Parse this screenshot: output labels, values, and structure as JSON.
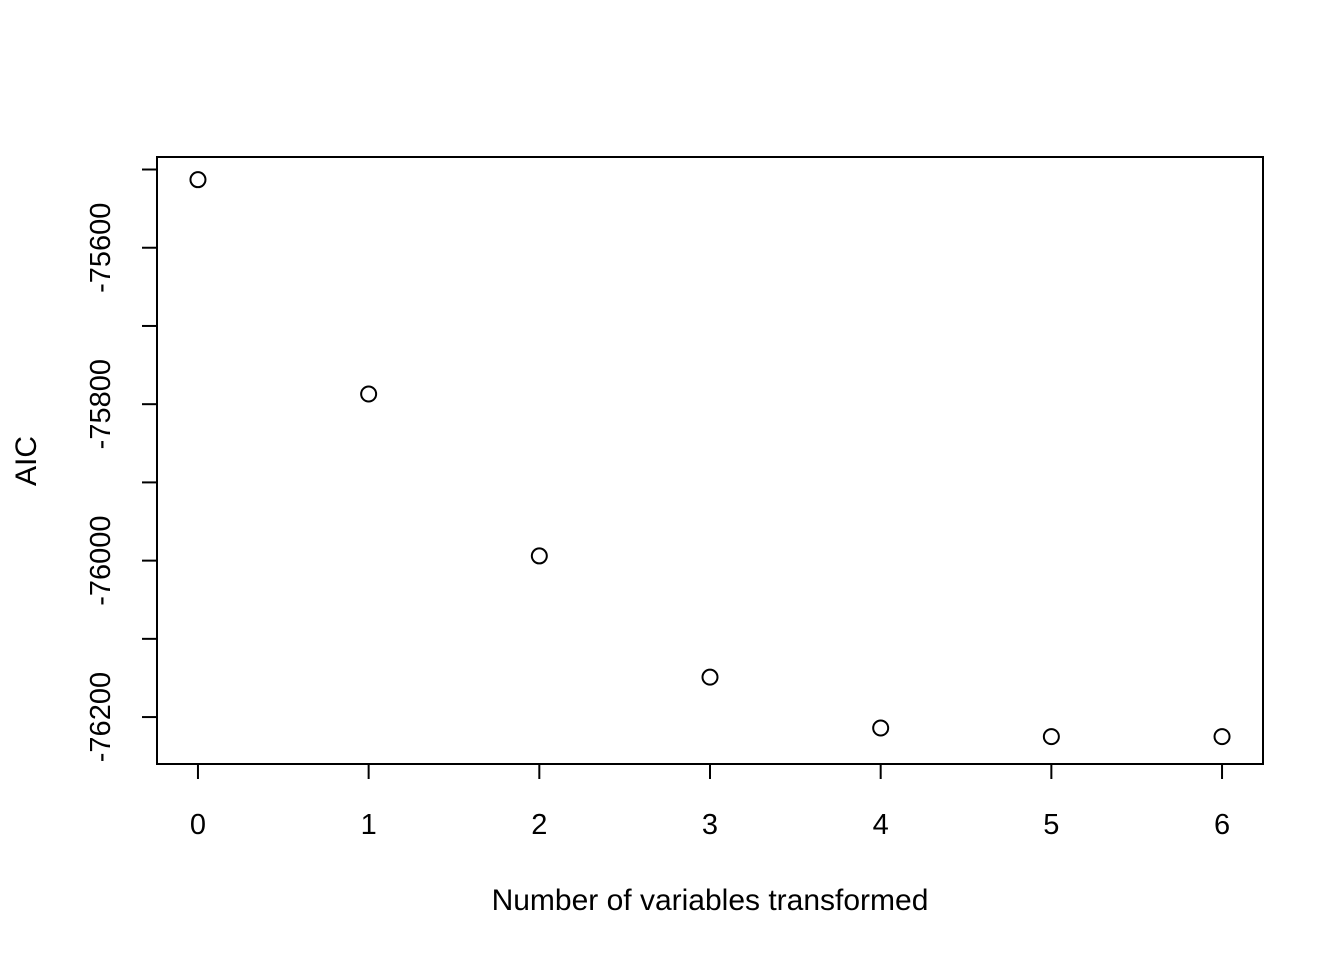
{
  "chart_data": {
    "type": "scatter",
    "title": "",
    "xlabel": "Number of variables transformed",
    "ylabel": "AIC",
    "x": [
      0,
      1,
      2,
      3,
      4,
      5,
      6
    ],
    "y": [
      -75513,
      -75787,
      -75994,
      -76149,
      -76214,
      -76225,
      -76225
    ],
    "xticks": [
      "0",
      "1",
      "2",
      "3",
      "4",
      "5",
      "6"
    ],
    "yticks": [
      "-75600",
      "-75800",
      "-76000",
      "-76200"
    ],
    "xlim": [
      -0.24,
      6.24
    ],
    "ylim": [
      -76260,
      -75484
    ],
    "marker": "open-circle",
    "grid": false,
    "legend": "none",
    "colors": {
      "marker": "#000000",
      "axis": "#000000"
    }
  }
}
